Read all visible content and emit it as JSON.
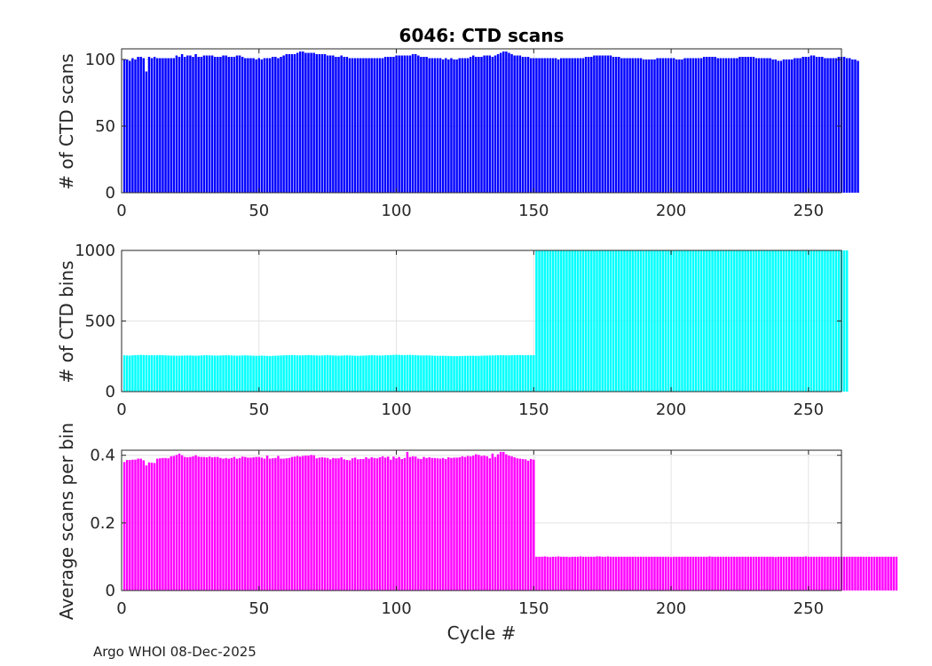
{
  "figure": {
    "title": "6046: CTD scans",
    "xlabel": "Cycle #",
    "footer": "Argo WHOI 08-Dec-2025"
  },
  "chart_data": [
    {
      "type": "bar",
      "name": "ctd-scans",
      "title": "6046: CTD scans",
      "xlabel": "",
      "ylabel": "# of CTD scans",
      "color": "#0000ff",
      "xlim": [
        0,
        262
      ],
      "ylim": [
        0,
        108
      ],
      "xticks": [
        0,
        50,
        100,
        150,
        200,
        250
      ],
      "yticks": [
        0,
        50,
        100
      ],
      "grid": true,
      "x_start": 1,
      "values": [
        100,
        100,
        99,
        101,
        100,
        102,
        102,
        101,
        91,
        102,
        101,
        102,
        101,
        101,
        101,
        101,
        101,
        101,
        101,
        103,
        102,
        104,
        102,
        103,
        103,
        102,
        104,
        102,
        102,
        103,
        103,
        103,
        103,
        102,
        102,
        102,
        103,
        103,
        102,
        102,
        102,
        103,
        103,
        102,
        101,
        101,
        101,
        101,
        100,
        101,
        100,
        101,
        101,
        101,
        102,
        102,
        101,
        102,
        103,
        104,
        104,
        104,
        104,
        105,
        106,
        106,
        105,
        105,
        105,
        105,
        104,
        104,
        104,
        104,
        103,
        103,
        103,
        102,
        102,
        103,
        102,
        102,
        101,
        101,
        101,
        101,
        101,
        101,
        101,
        101,
        101,
        101,
        101,
        101,
        101,
        102,
        102,
        102,
        102,
        103,
        103,
        103,
        103,
        103,
        103,
        104,
        104,
        103,
        102,
        102,
        102,
        101,
        101,
        101,
        101,
        101,
        100,
        101,
        100,
        101,
        100,
        100,
        101,
        101,
        101,
        101,
        102,
        103,
        102,
        102,
        102,
        103,
        103,
        103,
        102,
        103,
        104,
        105,
        106,
        106,
        105,
        104,
        103,
        103,
        103,
        102,
        102,
        102,
        101,
        101,
        101,
        101,
        101,
        101,
        101,
        101,
        101,
        101,
        100,
        101,
        101,
        101,
        101,
        101,
        101,
        101,
        101,
        101,
        102,
        102,
        102,
        103,
        103,
        103,
        103,
        103,
        103,
        103,
        102,
        102,
        102,
        101,
        101,
        101,
        101,
        101,
        101,
        101,
        101,
        100,
        100,
        100,
        100,
        100,
        101,
        101,
        101,
        101,
        101,
        101,
        101,
        100,
        100,
        100,
        101,
        101,
        101,
        101,
        101,
        101,
        101,
        102,
        102,
        102,
        102,
        102,
        101,
        101,
        101,
        101,
        101,
        101,
        101,
        101,
        102,
        102,
        102,
        102,
        102,
        102,
        101,
        101,
        101,
        101,
        101,
        101,
        100,
        100,
        99,
        99,
        100,
        100,
        100,
        100,
        101,
        101,
        101,
        102,
        102,
        102,
        103,
        103,
        102,
        102,
        102,
        101,
        101,
        101,
        101,
        101,
        102,
        102,
        102,
        101,
        101,
        100,
        100,
        99
      ]
    },
    {
      "type": "bar",
      "name": "ctd-bins",
      "title": "",
      "xlabel": "",
      "ylabel": "# of CTD bins",
      "color": "#00ffff",
      "xlim": [
        0,
        262
      ],
      "ylim": [
        0,
        1000
      ],
      "xticks": [
        0,
        50,
        100,
        150,
        200,
        250
      ],
      "yticks": [
        0,
        500,
        1000
      ],
      "grid": true,
      "x_start": 1,
      "values": [
        257,
        256,
        255,
        257,
        258,
        259,
        260,
        259,
        258,
        257,
        258,
        257,
        258,
        259,
        258,
        257,
        256,
        255,
        255,
        254,
        254,
        255,
        255,
        256,
        256,
        255,
        254,
        255,
        256,
        257,
        258,
        257,
        256,
        255,
        255,
        256,
        257,
        258,
        257,
        256,
        255,
        254,
        255,
        256,
        257,
        256,
        255,
        254,
        253,
        254,
        255,
        254,
        253,
        252,
        253,
        254,
        255,
        256,
        257,
        258,
        258,
        259,
        258,
        257,
        256,
        257,
        258,
        259,
        258,
        257,
        256,
        255,
        256,
        257,
        258,
        257,
        256,
        255,
        254,
        255,
        256,
        257,
        256,
        255,
        254,
        253,
        254,
        255,
        256,
        257,
        258,
        257,
        256,
        255,
        256,
        257,
        258,
        259,
        260,
        261,
        260,
        259,
        258,
        259,
        260,
        259,
        258,
        257,
        256,
        256,
        257,
        256,
        255,
        254,
        253,
        253,
        254,
        253,
        252,
        252,
        251,
        251,
        252,
        252,
        253,
        253,
        254,
        254,
        253,
        253,
        254,
        255,
        255,
        256,
        256,
        257,
        257,
        258,
        258,
        257,
        257,
        258,
        258,
        259,
        259,
        258,
        258,
        258,
        258,
        258,
        1000,
        1000,
        1000,
        1000,
        1000,
        1000,
        1000,
        1000,
        1000,
        1000,
        1000,
        1000,
        1000,
        1000,
        1000,
        1000,
        1000,
        1000,
        1000,
        1000,
        1000,
        1000,
        1000,
        1000,
        1000,
        1000,
        1000,
        1000,
        1000,
        1000,
        1000,
        1000,
        1000,
        1000,
        1000,
        1000,
        1000,
        1000,
        1000,
        1000,
        1000,
        1000,
        1000,
        1000,
        1000,
        1000,
        1000,
        1000,
        1000,
        1000,
        1000,
        1000,
        1000,
        1000,
        1000,
        1000,
        1000,
        1000,
        1000,
        1000,
        1000,
        1000,
        1000,
        1000,
        1000,
        1000,
        1000,
        1000,
        1000,
        1000,
        1000,
        1000,
        1000,
        1000,
        1000,
        1000,
        1000,
        1000,
        1000,
        1000,
        1000,
        1000,
        1000,
        1000,
        1000,
        1000,
        1000,
        1000,
        1000,
        1000,
        1000,
        1000,
        1000,
        1000,
        1000,
        1000,
        1000,
        1000,
        1000,
        1000,
        1000,
        1000,
        1000,
        1000,
        1000,
        1000,
        1000,
        1000,
        1000,
        1000,
        1000,
        1000,
        1000,
        1000
      ]
    },
    {
      "type": "bar",
      "name": "avg-scans-per-bin",
      "title": "",
      "xlabel": "Cycle #",
      "ylabel": "Average scans per bin",
      "color": "#ff00ff",
      "xlim": [
        0,
        262
      ],
      "ylim": [
        0,
        0.415
      ],
      "xticks": [
        0,
        50,
        100,
        150,
        200,
        250
      ],
      "yticks": [
        0,
        0.2,
        0.4
      ],
      "grid": true,
      "x_start": 1,
      "values": [
        0.38,
        0.386,
        0.386,
        0.387,
        0.387,
        0.39,
        0.39,
        0.385,
        0.37,
        0.379,
        0.378,
        0.377,
        0.39,
        0.391,
        0.392,
        0.392,
        0.391,
        0.397,
        0.398,
        0.401,
        0.405,
        0.4,
        0.395,
        0.394,
        0.395,
        0.397,
        0.4,
        0.396,
        0.395,
        0.395,
        0.394,
        0.396,
        0.394,
        0.395,
        0.395,
        0.392,
        0.39,
        0.392,
        0.39,
        0.392,
        0.395,
        0.39,
        0.392,
        0.396,
        0.395,
        0.393,
        0.393,
        0.394,
        0.395,
        0.395,
        0.393,
        0.39,
        0.399,
        0.39,
        0.391,
        0.392,
        0.398,
        0.39,
        0.39,
        0.391,
        0.392,
        0.395,
        0.396,
        0.398,
        0.396,
        0.398,
        0.399,
        0.399,
        0.401,
        0.4,
        0.391,
        0.393,
        0.394,
        0.393,
        0.392,
        0.388,
        0.392,
        0.391,
        0.391,
        0.394,
        0.388,
        0.386,
        0.385,
        0.391,
        0.393,
        0.388,
        0.389,
        0.389,
        0.394,
        0.39,
        0.394,
        0.392,
        0.391,
        0.394,
        0.397,
        0.393,
        0.396,
        0.387,
        0.396,
        0.391,
        0.395,
        0.389,
        0.392,
        0.41,
        0.395,
        0.397,
        0.396,
        0.39,
        0.389,
        0.395,
        0.392,
        0.394,
        0.392,
        0.392,
        0.391,
        0.39,
        0.392,
        0.389,
        0.394,
        0.392,
        0.393,
        0.393,
        0.394,
        0.397,
        0.395,
        0.398,
        0.397,
        0.399,
        0.403,
        0.401,
        0.398,
        0.399,
        0.397,
        0.391,
        0.405,
        0.395,
        0.403,
        0.41,
        0.41,
        0.403,
        0.399,
        0.397,
        0.394,
        0.391,
        0.39,
        0.389,
        0.388,
        0.384,
        0.389,
        0.387,
        0.1,
        0.1,
        0.1,
        0.101,
        0.1,
        0.099,
        0.1,
        0.1,
        0.101,
        0.1,
        0.1,
        0.1,
        0.099,
        0.1,
        0.1,
        0.1,
        0.101,
        0.1,
        0.1,
        0.1,
        0.1,
        0.1,
        0.101,
        0.101,
        0.1,
        0.1,
        0.101,
        0.1,
        0.1,
        0.1,
        0.1,
        0.1,
        0.1,
        0.1,
        0.1,
        0.1,
        0.1,
        0.1,
        0.1,
        0.1,
        0.1,
        0.1,
        0.1,
        0.1,
        0.1,
        0.1,
        0.1,
        0.1,
        0.1,
        0.099,
        0.1,
        0.1,
        0.1,
        0.1,
        0.1,
        0.1,
        0.1,
        0.1,
        0.1,
        0.1,
        0.1,
        0.1,
        0.1,
        0.101,
        0.1,
        0.1,
        0.1,
        0.1,
        0.1,
        0.1,
        0.1,
        0.1,
        0.1,
        0.1,
        0.1,
        0.1,
        0.1,
        0.1,
        0.1,
        0.1,
        0.1,
        0.1,
        0.1,
        0.1,
        0.1,
        0.1,
        0.1,
        0.099,
        0.1,
        0.1,
        0.1,
        0.1,
        0.1,
        0.1,
        0.1,
        0.1,
        0.1,
        0.1,
        0.101,
        0.1,
        0.1,
        0.1,
        0.1,
        0.1,
        0.1,
        0.1,
        0.1,
        0.1,
        0.1,
        0.1,
        0.1,
        0.1,
        0.1,
        0.1,
        0.1,
        0.1,
        0.1,
        0.1,
        0.1,
        0.1,
        0.1,
        0.1,
        0.1,
        0.1,
        0.1,
        0.1,
        0.1,
        0.1,
        0.1,
        0.1,
        0.1,
        0.1
      ]
    }
  ]
}
